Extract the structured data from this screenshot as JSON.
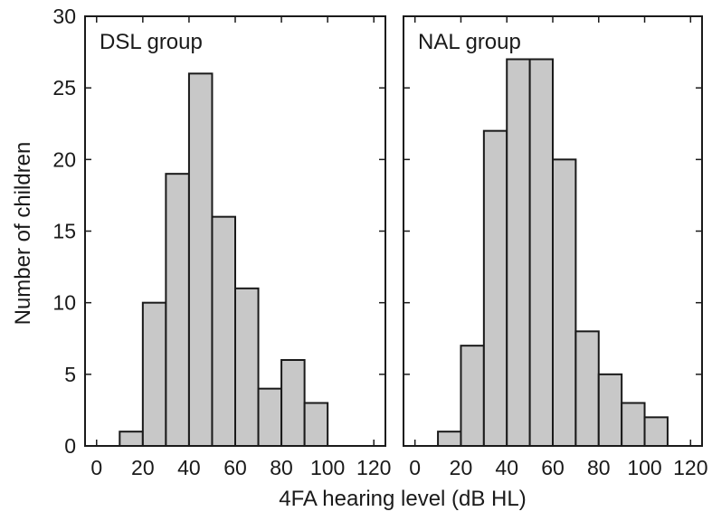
{
  "chart_data": {
    "ylabel": "Number of children",
    "xlabel": "4FA hearing level (dB HL)",
    "colors": {
      "bar_fill": "#c8c8c8",
      "bar_stroke": "#1a1a1a",
      "frame": "#1a1a1a"
    },
    "panels": [
      {
        "type": "bar",
        "title": "DSL group",
        "bin_width": 10,
        "xlim": [
          -5,
          125
        ],
        "ylim": [
          0,
          30
        ],
        "xticks": [
          0,
          20,
          40,
          60,
          80,
          100,
          120
        ],
        "yticks": [
          0,
          5,
          10,
          15,
          20,
          25,
          30
        ],
        "show_y_tick_labels": true,
        "bins": [
          {
            "start": 10,
            "value": 1
          },
          {
            "start": 20,
            "value": 10
          },
          {
            "start": 30,
            "value": 19
          },
          {
            "start": 40,
            "value": 26
          },
          {
            "start": 50,
            "value": 16
          },
          {
            "start": 60,
            "value": 11
          },
          {
            "start": 70,
            "value": 4
          },
          {
            "start": 80,
            "value": 6
          },
          {
            "start": 90,
            "value": 3
          }
        ]
      },
      {
        "type": "bar",
        "title": "NAL group",
        "bin_width": 10,
        "xlim": [
          -5,
          125
        ],
        "ylim": [
          0,
          30
        ],
        "xticks": [
          0,
          20,
          40,
          60,
          80,
          100,
          120
        ],
        "yticks": [
          0,
          5,
          10,
          15,
          20,
          25,
          30
        ],
        "show_y_tick_labels": false,
        "bins": [
          {
            "start": 10,
            "value": 1
          },
          {
            "start": 20,
            "value": 7
          },
          {
            "start": 30,
            "value": 22
          },
          {
            "start": 40,
            "value": 27
          },
          {
            "start": 50,
            "value": 27
          },
          {
            "start": 60,
            "value": 20
          },
          {
            "start": 70,
            "value": 8
          },
          {
            "start": 80,
            "value": 5
          },
          {
            "start": 90,
            "value": 3
          },
          {
            "start": 100,
            "value": 2
          }
        ]
      }
    ]
  }
}
